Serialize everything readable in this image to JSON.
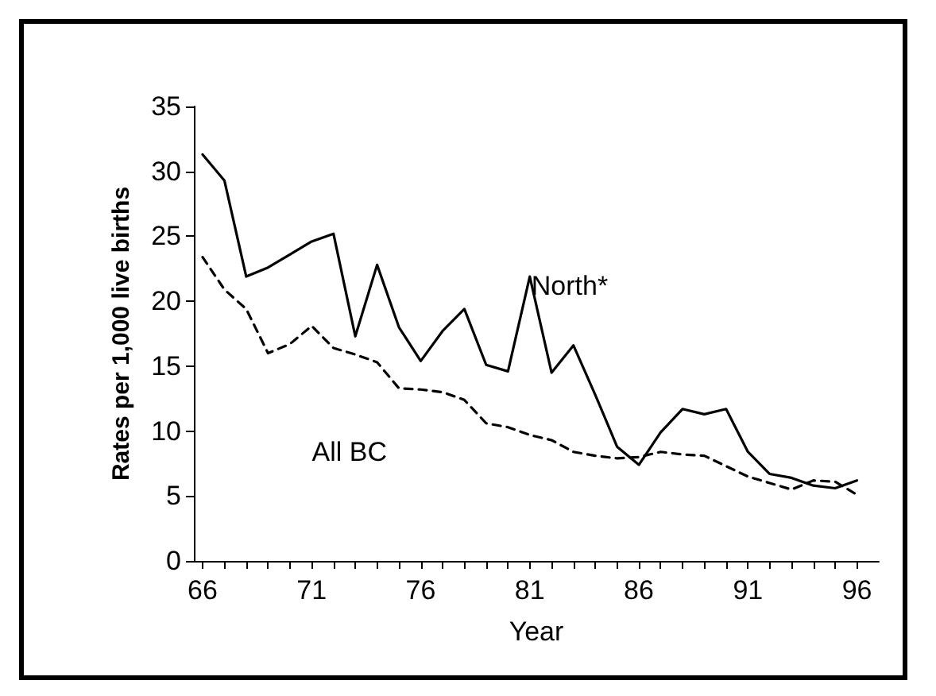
{
  "chart_data": {
    "type": "line",
    "xlabel": "Year",
    "ylabel": "Rates per 1,000 live births",
    "x": [
      66,
      67,
      68,
      69,
      70,
      71,
      72,
      73,
      74,
      75,
      76,
      77,
      78,
      79,
      80,
      81,
      82,
      83,
      84,
      85,
      86,
      87,
      88,
      89,
      90,
      91,
      92,
      93,
      94,
      95,
      96
    ],
    "xlim": [
      65.6,
      97
    ],
    "xticks": [
      66,
      {
        "value": 67,
        "label": null
      },
      {
        "value": 68,
        "label": null
      },
      {
        "value": 69,
        "label": null
      },
      {
        "value": 70,
        "label": null
      },
      71,
      {
        "value": 72,
        "label": null
      },
      {
        "value": 73,
        "label": null
      },
      {
        "value": 74,
        "label": null
      },
      {
        "value": 75,
        "label": null
      },
      76,
      {
        "value": 77,
        "label": null
      },
      {
        "value": 78,
        "label": null
      },
      {
        "value": 79,
        "label": null
      },
      {
        "value": 80,
        "label": null
      },
      81,
      {
        "value": 82,
        "label": null
      },
      {
        "value": 83,
        "label": null
      },
      {
        "value": 84,
        "label": null
      },
      {
        "value": 85,
        "label": null
      },
      86,
      {
        "value": 87,
        "label": null
      },
      {
        "value": 88,
        "label": null
      },
      {
        "value": 89,
        "label": null
      },
      {
        "value": 90,
        "label": null
      },
      91,
      {
        "value": 92,
        "label": null
      },
      {
        "value": 93,
        "label": null
      },
      {
        "value": 94,
        "label": null
      },
      {
        "value": 95,
        "label": null
      },
      96
    ],
    "ylim": [
      0,
      35
    ],
    "yticks": [
      0,
      5,
      10,
      15,
      20,
      25,
      30,
      35
    ],
    "grid": false,
    "legend": false,
    "marker": "none",
    "series": [
      {
        "name": "North*",
        "color": "#000000",
        "line_style": "solid",
        "values": [
          31.3,
          29.3,
          21.9,
          22.6,
          23.6,
          24.6,
          25.2,
          17.3,
          22.8,
          18,
          15.4,
          17.7,
          19.4,
          15.1,
          14.6,
          21.9,
          14.5,
          16.6,
          12.8,
          8.8,
          7.4,
          9.9,
          11.7,
          11.3,
          11.7,
          8.4,
          6.7,
          6.4,
          5.8,
          5.6,
          6.2
        ]
      },
      {
        "name": "All BC",
        "color": "#000000",
        "line_style": "dashed",
        "values": [
          23.4,
          20.9,
          19.4,
          16,
          16.7,
          18.1,
          16.4,
          15.9,
          15.3,
          13.3,
          13.2,
          13,
          12.4,
          10.6,
          10.3,
          9.7,
          9.3,
          8.4,
          8.1,
          7.9,
          8,
          8.4,
          8.2,
          8.1,
          7.3,
          6.5,
          6,
          5.5,
          6.2,
          6.1,
          5.1
        ]
      }
    ]
  }
}
